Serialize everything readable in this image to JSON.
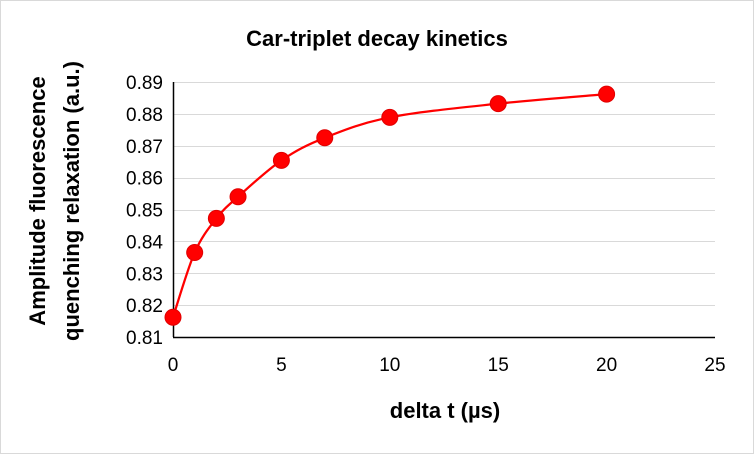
{
  "chart_data": {
    "type": "scatter",
    "title": "Car-triplet decay kinetics",
    "xlabel": "delta t (µs)",
    "ylabel_lines": [
      "Amplitude fluorescence",
      "quenching relaxation (a.u.)"
    ],
    "xlim": [
      0,
      25
    ],
    "ylim": [
      0.81,
      0.89
    ],
    "x_ticks": [
      0,
      5,
      10,
      15,
      20,
      25
    ],
    "y_ticks": [
      0.81,
      0.82,
      0.83,
      0.84,
      0.85,
      0.86,
      0.87,
      0.88,
      0.89
    ],
    "x_tick_labels": [
      "0",
      "5",
      "10",
      "15",
      "20",
      "25"
    ],
    "y_tick_labels": [
      "0.81",
      "0.82",
      "0.83",
      "0.84",
      "0.85",
      "0.86",
      "0.87",
      "0.88",
      "0.89"
    ],
    "grid": "horizontal",
    "series": [
      {
        "color": "#ff0000",
        "smooth_line": true,
        "marker": "circle",
        "points": [
          {
            "x": 0,
            "y": 0.8162
          },
          {
            "x": 1,
            "y": 0.8365
          },
          {
            "x": 2,
            "y": 0.8472
          },
          {
            "x": 3,
            "y": 0.854
          },
          {
            "x": 5,
            "y": 0.8654
          },
          {
            "x": 7,
            "y": 0.8725
          },
          {
            "x": 10,
            "y": 0.8789
          },
          {
            "x": 15,
            "y": 0.8832
          },
          {
            "x": 20,
            "y": 0.8862
          }
        ]
      }
    ]
  }
}
